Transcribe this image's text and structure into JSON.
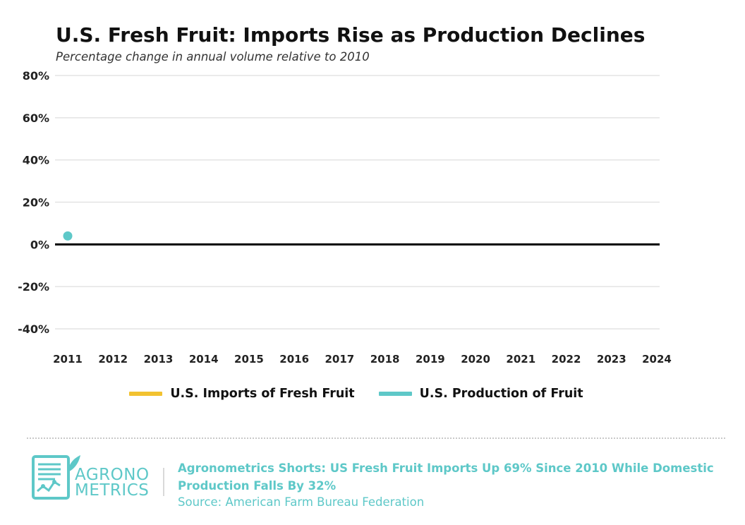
{
  "colors": {
    "imports": "#f2c230",
    "production": "#5ec8c8",
    "grid": "#e3e3e3",
    "zero_line": "#000000",
    "brand": "#5ec8c8"
  },
  "chart_data": {
    "type": "line",
    "title": "U.S. Fresh Fruit: Imports Rise as Production Declines",
    "subtitle": "Percentage change in annual volume relative to 2010",
    "x": [
      2011,
      2012,
      2013,
      2014,
      2015,
      2016,
      2017,
      2018,
      2019,
      2020,
      2021,
      2022,
      2023,
      2024
    ],
    "xticks": [
      "2011",
      "2012",
      "2013",
      "2014",
      "2015",
      "2016",
      "2017",
      "2018",
      "2019",
      "2020",
      "2021",
      "2022",
      "2023",
      "2024"
    ],
    "yticks": [
      "80%",
      "60%",
      "40%",
      "20%",
      "0%",
      "-20%",
      "-40%"
    ],
    "ytick_values": [
      80,
      60,
      40,
      20,
      0,
      -20,
      -40
    ],
    "ylim": [
      -40,
      80
    ],
    "xlim": [
      2011,
      2024
    ],
    "grid": true,
    "legend_position": "bottom-center",
    "series": [
      {
        "name": "U.S. Imports of Fresh Fruit",
        "color": "#f2c230",
        "points": []
      },
      {
        "name": "U.S. Production of Fruit",
        "color": "#5ec8c8",
        "points": [
          {
            "x": 2011,
            "y": 4
          }
        ]
      }
    ]
  },
  "footer": {
    "logo_line1": "AGRONO",
    "logo_line2": "METRICS",
    "headline": "Agronometrics Shorts: US Fresh Fruit Imports Up 69% Since 2010 While Domestic Production Falls By 32%",
    "source": "Source: American Farm Bureau Federation"
  }
}
